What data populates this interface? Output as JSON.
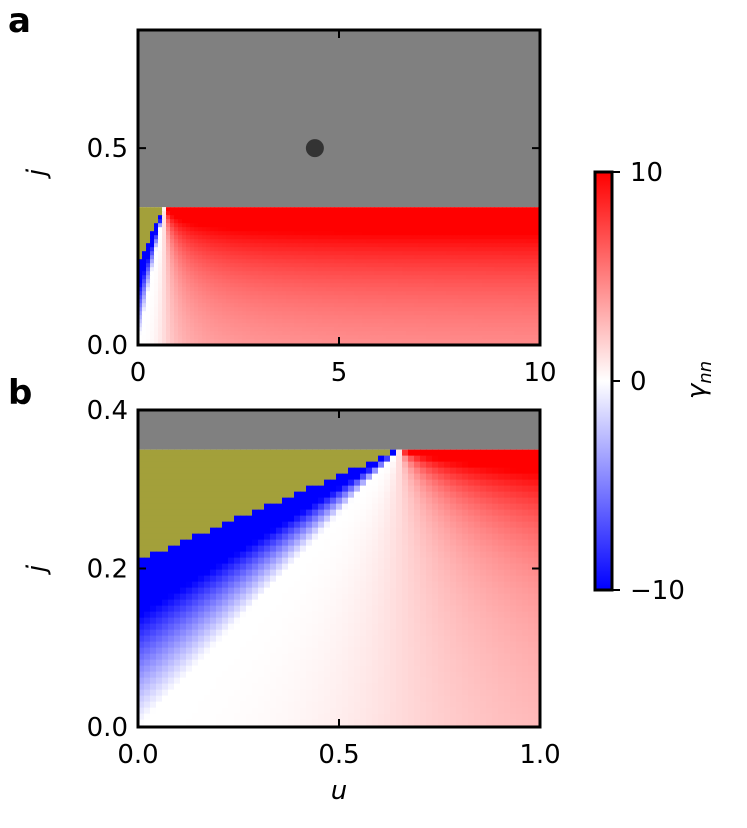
{
  "chart_data": {
    "type": "heatmap",
    "gray_above": 0.35,
    "gray_color": "#808080",
    "olive_color": "#a3a03a",
    "olive_boundary": [
      [
        0,
        0.21
      ],
      [
        0.65,
        0.35
      ]
    ],
    "critical_point": [
      0.65,
      0.35
    ],
    "panels": [
      {
        "label": "a",
        "xlim": [
          0,
          10
        ],
        "ylim": [
          0,
          0.8
        ],
        "xticks": [
          0,
          5,
          10
        ],
        "yticks": [
          {
            "value": 0,
            "label": "0.0"
          },
          {
            "value": 0.5,
            "label": "0.5"
          }
        ],
        "ylabel": "j",
        "marker": {
          "x": 4.4,
          "y": 0.5,
          "color": "#333333"
        }
      },
      {
        "label": "b",
        "xlim": [
          0,
          1
        ],
        "ylim": [
          0,
          0.4
        ],
        "xticks": [
          {
            "value": 0,
            "label": "0.0"
          },
          {
            "value": 0.5,
            "label": "0.5"
          },
          {
            "value": 1,
            "label": "1.0"
          }
        ],
        "yticks": [
          {
            "value": 0,
            "label": "0.0"
          },
          {
            "value": 0.2,
            "label": "0.2"
          },
          {
            "value": 0.4,
            "label": "0.4"
          }
        ],
        "ylabel": "j",
        "xlabel": "u"
      }
    ],
    "colorbar": {
      "lim": [
        -10,
        10
      ],
      "ticks": [
        {
          "value": -10,
          "label": "−10"
        },
        0,
        10
      ],
      "label": "γ",
      "label_subscript": "nn",
      "colormap": [
        "#0000ff",
        "#ffffff",
        "#ff0000"
      ]
    }
  }
}
